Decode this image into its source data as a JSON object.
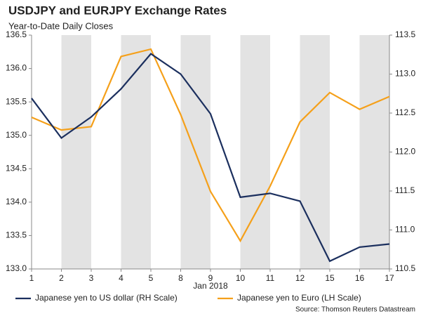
{
  "chart_data": {
    "type": "line",
    "title": "USDJPY and EURJPY Exchange Rates",
    "subtitle": "Year-to-Date Daily Closes",
    "categories": [
      "1",
      "2",
      "3",
      "4",
      "5",
      "8",
      "9",
      "10",
      "11",
      "12",
      "15",
      "16",
      "17"
    ],
    "x_label": "Jan 2018",
    "series": [
      {
        "name": "Japanese yen to US dollar (RH Scale)",
        "color": "#1b2f5e",
        "axis": "y2",
        "values": [
          112.69,
          112.18,
          112.45,
          112.81,
          113.26,
          113.0,
          112.49,
          111.42,
          111.47,
          111.37,
          110.6,
          110.78,
          110.82
        ]
      },
      {
        "name": "Japanese yen to Euro (LH Scale)",
        "color": "#f5a01a",
        "values": [
          135.27,
          135.08,
          135.13,
          136.18,
          136.29,
          135.31,
          134.16,
          133.42,
          134.24,
          135.2,
          135.64,
          135.39,
          135.58
        ]
      }
    ],
    "ylim": [
      133.0,
      136.5
    ],
    "yticks": [
      {
        "value": 133.0,
        "label": "133.0"
      },
      133.5,
      {
        "value": 134.0,
        "label": "134.0"
      },
      134.5,
      {
        "value": 135.0,
        "label": "135.0"
      },
      135.5,
      {
        "value": 136.0,
        "label": "136.0"
      },
      136.5
    ],
    "y2lim": [
      110.5,
      113.5
    ],
    "y2ticks": [
      110.5,
      {
        "value": 111.0,
        "label": "111.0"
      },
      111.5,
      {
        "value": 112.0,
        "label": "112.0"
      },
      112.5,
      {
        "value": 113.0,
        "label": "113.0"
      },
      113.5
    ],
    "source": "Source: Thomson Reuters Datastream"
  }
}
